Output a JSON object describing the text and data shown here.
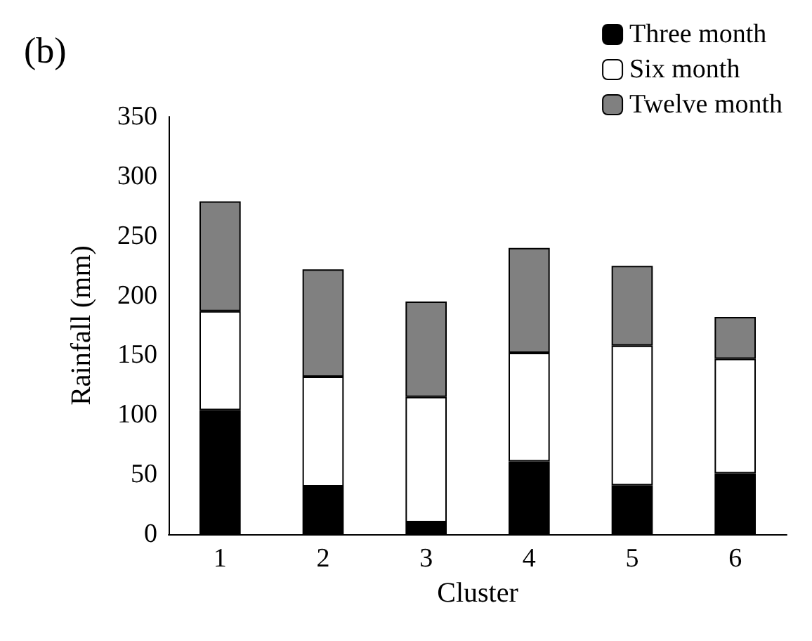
{
  "chart_data": {
    "type": "bar",
    "title": "(b)",
    "xlabel": "Cluster",
    "ylabel": "Rainfall (mm)",
    "categories": [
      "1",
      "2",
      "3",
      "4",
      "5",
      "6"
    ],
    "stacked": true,
    "series": [
      {
        "name": "Three month",
        "color": "#000000",
        "values": [
          104,
          40,
          10,
          61,
          41,
          51
        ]
      },
      {
        "name": "Six month",
        "color": "#ffffff",
        "values": [
          83,
          92,
          105,
          91,
          117,
          96
        ]
      },
      {
        "name": "Twelve month",
        "color": "#808080",
        "values": [
          92,
          90,
          80,
          88,
          67,
          35
        ]
      }
    ],
    "ylim": [
      0,
      350
    ],
    "yticks": [
      0,
      50,
      100,
      150,
      200,
      250,
      300,
      350
    ],
    "grid": false,
    "legend": "top right"
  }
}
